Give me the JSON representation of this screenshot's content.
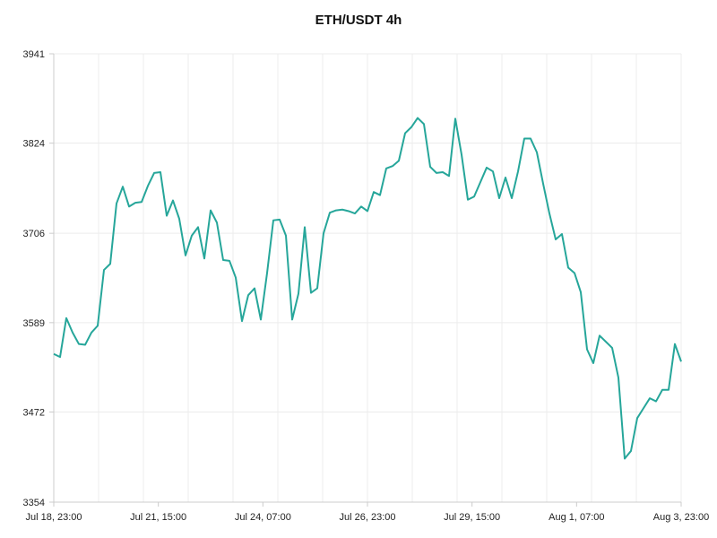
{
  "chart_data": {
    "type": "line",
    "title": "ETH/USDT 4h",
    "xlabel": "",
    "ylabel": "",
    "ylim": [
      3354,
      3941
    ],
    "y_ticks": [
      "3354",
      "3472",
      "3589",
      "3706",
      "3824",
      "3941"
    ],
    "x_tick_labels": [
      "Jul 18, 23:00",
      "Jul 21, 15:00",
      "Jul 24, 07:00",
      "Jul 26, 23:00",
      "Jul 29, 15:00",
      "Aug 1, 07:00",
      "Aug 3, 23:00"
    ],
    "grid": true,
    "colors": {
      "line": "#26a69a",
      "grid": "#ececec",
      "axis": "#cccccc"
    },
    "series": [
      {
        "values": [
          3548,
          3544,
          3595,
          3576,
          3561,
          3560,
          3576,
          3585,
          3658,
          3666,
          3745,
          3767,
          3741,
          3746,
          3747,
          3768,
          3785,
          3786,
          3729,
          3749,
          3725,
          3677,
          3703,
          3714,
          3673,
          3736,
          3720,
          3671,
          3670,
          3648,
          3591,
          3625,
          3634,
          3593,
          3654,
          3723,
          3724,
          3703,
          3593,
          3627,
          3714,
          3628,
          3634,
          3706,
          3733,
          3736,
          3737,
          3735,
          3732,
          3741,
          3735,
          3760,
          3756,
          3791,
          3794,
          3801,
          3837,
          3845,
          3857,
          3849,
          3793,
          3785,
          3786,
          3781,
          3856,
          3809,
          3750,
          3754,
          3773,
          3792,
          3787,
          3752,
          3779,
          3752,
          3787,
          3830,
          3830,
          3812,
          3771,
          3732,
          3698,
          3705,
          3661,
          3654,
          3629,
          3554,
          3536,
          3572,
          3564,
          3556,
          3517,
          3411,
          3421,
          3464,
          3477,
          3490,
          3486,
          3501,
          3501,
          3561,
          3538
        ]
      }
    ]
  }
}
